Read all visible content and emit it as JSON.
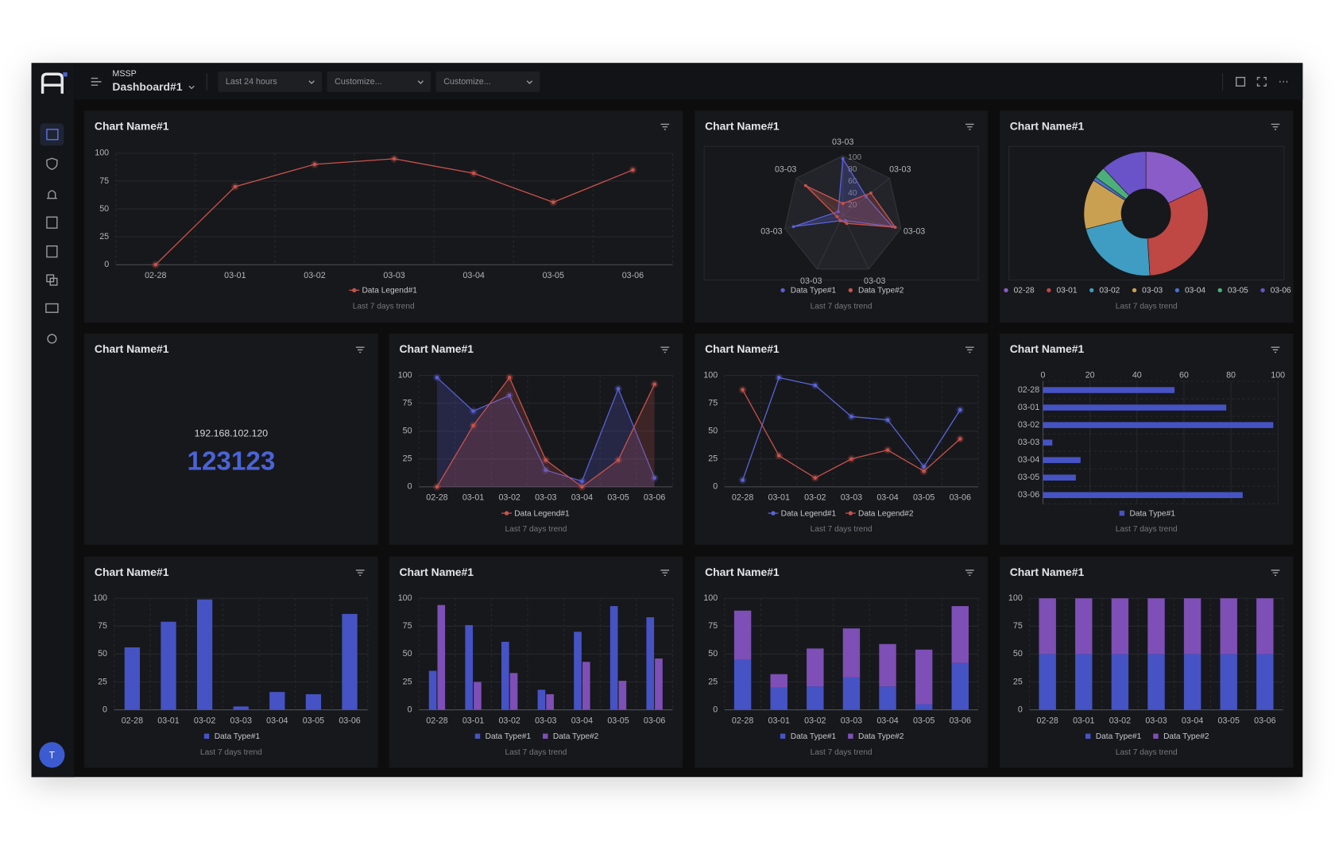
{
  "header": {
    "org": "MSSP",
    "dashboard": "Dashboard#1",
    "filters": [
      "Last 24 hours",
      "Customize...",
      "Customize..."
    ]
  },
  "user": {
    "avatar": "T"
  },
  "chart_data": [
    {
      "type": "line",
      "title": "Chart Name#1",
      "caption": "Last 7 days trend",
      "categories": [
        "02-28",
        "03-01",
        "03-02",
        "03-03",
        "03-04",
        "03-05",
        "03-06"
      ],
      "series": [
        {
          "name": "Data Legend#1",
          "color": "#c9524c",
          "values": [
            0,
            70,
            90,
            95,
            82,
            56,
            85
          ]
        }
      ],
      "ylim": [
        0,
        100
      ],
      "yticks": [
        0,
        25,
        50,
        75,
        100
      ],
      "grid": true
    },
    {
      "type": "radar",
      "title": "Chart Name#1",
      "caption": "Last 7 days trend",
      "categories": [
        "03-03",
        "03-03",
        "03-03",
        "03-03",
        "03-03",
        "03-03",
        "03-03"
      ],
      "series": [
        {
          "name": "Data Type#1",
          "color": "#5a5fd6",
          "values": [
            95,
            50,
            85,
            10,
            10,
            85,
            10
          ]
        },
        {
          "name": "Data Type#2",
          "color": "#c9524c",
          "values": [
            20,
            60,
            90,
            15,
            10,
            10,
            80
          ]
        }
      ],
      "rlim": [
        0,
        100
      ],
      "rticks": [
        20,
        40,
        60,
        80,
        100
      ],
      "grid": true
    },
    {
      "type": "donut",
      "title": "Chart Name#1",
      "caption": "Last 7 days trend",
      "categories": [
        "02-28",
        "03-01",
        "03-02",
        "03-03",
        "03-04",
        "03-05",
        "03-06"
      ],
      "values": [
        18,
        31,
        22,
        13,
        1,
        3,
        12
      ],
      "colors": [
        "#8a5cc8",
        "#bf4744",
        "#3f9cc2",
        "#c9a052",
        "#4a6fd0",
        "#4caf7a",
        "#6a52c8"
      ]
    },
    {
      "type": "stat",
      "title": "Chart Name#1",
      "label": "192.168.102.120",
      "value": 123123
    },
    {
      "type": "area",
      "title": "Chart Name#1",
      "caption": "Last 7 days trend",
      "categories": [
        "02-28",
        "03-01",
        "03-02",
        "03-03",
        "03-04",
        "03-05",
        "03-06"
      ],
      "series": [
        {
          "color": "#5a5fd6",
          "values": [
            98,
            68,
            82,
            15,
            5,
            88,
            8
          ]
        },
        {
          "name": "Data Legend#1",
          "color": "#c9524c",
          "values": [
            0,
            55,
            98,
            24,
            0,
            24,
            92
          ]
        }
      ],
      "ylim": [
        0,
        100
      ],
      "yticks": [
        0,
        25,
        50,
        75,
        100
      ],
      "grid": true
    },
    {
      "type": "line",
      "title": "Chart Name#1",
      "caption": "Last 7 days trend",
      "categories": [
        "02-28",
        "03-01",
        "03-02",
        "03-03",
        "03-04",
        "03-05",
        "03-06"
      ],
      "series": [
        {
          "name": "Data Legend#1",
          "color": "#5a65d8",
          "values": [
            6,
            98,
            91,
            63,
            60,
            18,
            69
          ]
        },
        {
          "name": "Data Legend#2",
          "color": "#c9524c",
          "values": [
            87,
            28,
            8,
            25,
            33,
            14,
            43
          ]
        }
      ],
      "ylim": [
        0,
        100
      ],
      "yticks": [
        0,
        25,
        50,
        75,
        100
      ],
      "grid": true
    },
    {
      "type": "barh",
      "title": "Chart Name#1",
      "caption": "Last 7 days trend",
      "categories": [
        "02-28",
        "03-01",
        "03-02",
        "03-03",
        "03-04",
        "03-05",
        "03-06"
      ],
      "series": [
        {
          "name": "Data Type#1",
          "color": "#4653c4",
          "values": [
            56,
            78,
            98,
            4,
            16,
            14,
            85
          ]
        }
      ],
      "xlim": [
        0,
        100
      ],
      "xticks": [
        0,
        20,
        40,
        60,
        80,
        100
      ],
      "grid": true
    },
    {
      "type": "bar",
      "title": "Chart Name#1",
      "caption": "Last 7 days trend",
      "categories": [
        "02-28",
        "03-01",
        "03-02",
        "03-03",
        "03-04",
        "03-05",
        "03-06"
      ],
      "series": [
        {
          "name": "Data Type#1",
          "color": "#4653c4",
          "values": [
            56,
            79,
            99,
            3,
            16,
            14,
            86
          ]
        }
      ],
      "ylim": [
        0,
        100
      ],
      "yticks": [
        0,
        25,
        50,
        75,
        100
      ],
      "grid": true,
      "stacked": false
    },
    {
      "type": "bar",
      "title": "Chart Name#1",
      "caption": "Last 7 days trend",
      "categories": [
        "02-28",
        "03-01",
        "03-02",
        "03-03",
        "03-04",
        "03-05",
        "03-06"
      ],
      "series": [
        {
          "name": "Data Type#1",
          "color": "#4653c4",
          "values": [
            35,
            76,
            61,
            18,
            70,
            93,
            83
          ]
        },
        {
          "name": "Data Type#2",
          "color": "#7e4fb6",
          "values": [
            94,
            25,
            33,
            14,
            43,
            26,
            46
          ]
        }
      ],
      "ylim": [
        0,
        100
      ],
      "yticks": [
        0,
        25,
        50,
        75,
        100
      ],
      "grid": true,
      "stacked": false
    },
    {
      "type": "bar",
      "title": "Chart Name#1",
      "caption": "Last 7 days trend",
      "categories": [
        "02-28",
        "03-01",
        "03-02",
        "03-03",
        "03-04",
        "03-05",
        "03-06"
      ],
      "series": [
        {
          "name": "Data Type#1",
          "color": "#4653c4",
          "values": [
            45,
            20,
            21,
            29,
            21,
            5,
            42
          ]
        },
        {
          "name": "Data Type#2",
          "color": "#7e4fb6",
          "values": [
            44,
            12,
            34,
            44,
            38,
            49,
            51
          ]
        }
      ],
      "ylim": [
        0,
        100
      ],
      "yticks": [
        0,
        25,
        50,
        75,
        100
      ],
      "grid": true,
      "stacked": true
    },
    {
      "type": "bar",
      "title": "Chart Name#1",
      "caption": "Last 7 days trend",
      "categories": [
        "02-28",
        "03-01",
        "03-02",
        "03-03",
        "03-04",
        "03-05",
        "03-06"
      ],
      "series": [
        {
          "name": "Data Type#1",
          "color": "#4653c4",
          "values": [
            50,
            50,
            50,
            50,
            50,
            50,
            50
          ]
        },
        {
          "name": "Data Type#2",
          "color": "#7e4fb6",
          "values": [
            50,
            50,
            50,
            50,
            50,
            50,
            50
          ]
        }
      ],
      "ylim": [
        0,
        100
      ],
      "yticks": [
        0,
        25,
        50,
        75,
        100
      ],
      "grid": true,
      "stacked": true
    }
  ]
}
